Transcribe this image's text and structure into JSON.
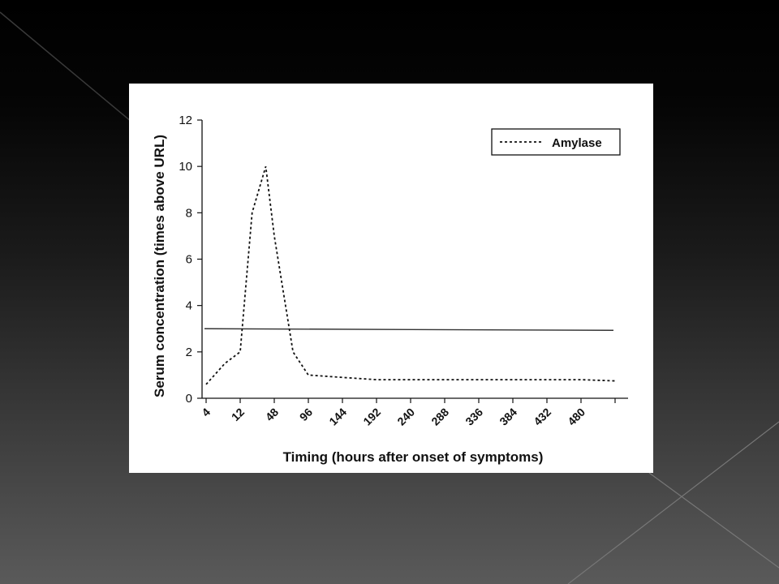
{
  "chart_data": {
    "type": "line",
    "xlabel": "Timing (hours after onset of symptoms)",
    "ylabel": "Serum concentration (times above URL)",
    "ylim": [
      0,
      12
    ],
    "y_ticks": [
      0,
      2,
      4,
      6,
      8,
      10,
      12
    ],
    "x_tick_labels": [
      "4",
      "12",
      "48",
      "96",
      "144",
      "192",
      "240",
      "288",
      "336",
      "384",
      "432",
      "480"
    ],
    "grid": false,
    "legend_position": "top-right",
    "series": [
      {
        "name": "Amylase",
        "style": "dotted",
        "color": "#111111",
        "x": [
          "4",
          "8",
          "12",
          "24",
          "36",
          "48",
          "72",
          "96",
          "144",
          "192",
          "240",
          "288",
          "336",
          "384",
          "432",
          "480",
          "528"
        ],
        "values": [
          0.6,
          1.5,
          2.0,
          8.0,
          10.0,
          7.0,
          2.0,
          1.0,
          0.9,
          0.8,
          0.8,
          0.8,
          0.8,
          0.8,
          0.8,
          0.8,
          0.75
        ]
      }
    ],
    "reference_line": {
      "value": 3.0,
      "style": "solid",
      "color": "#333333"
    }
  }
}
